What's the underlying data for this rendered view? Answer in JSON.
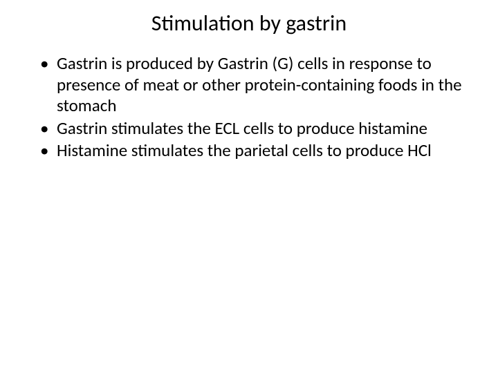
{
  "slide": {
    "title": "Stimulation by gastrin",
    "bullets": [
      "Gastrin is produced by Gastrin (G) cells in response to presence of meat  or other protein-containing foods in the stomach",
      "Gastrin stimulates the ECL cells to produce histamine",
      "Histamine stimulates the parietal cells to produce HCl"
    ],
    "colors": {
      "background": "#ffffff",
      "text": "#000000"
    },
    "typography": {
      "title_fontsize": 32,
      "body_fontsize": 25,
      "font_family": "Calibri"
    }
  }
}
